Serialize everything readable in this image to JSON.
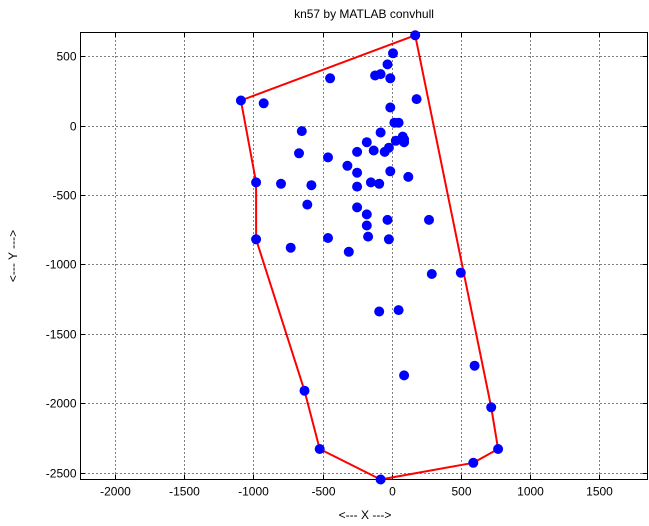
{
  "chart_data": {
    "type": "scatter",
    "title": "kn57 by MATLAB convhull",
    "xlabel": "<--- X --->",
    "ylabel": "<--- Y --->",
    "xlim": [
      -2250,
      1850
    ],
    "ylim": [
      -2550,
      670
    ],
    "x_ticks": [
      -2000,
      -1500,
      -1000,
      -500,
      0,
      500,
      1000,
      1500
    ],
    "y_ticks": [
      -2500,
      -2000,
      -1500,
      -1000,
      -500,
      0,
      500
    ],
    "x_tick_labels": [
      "-2000",
      "-1500",
      "-1000",
      "-500",
      "0",
      "500",
      "1000",
      "1500"
    ],
    "y_tick_labels": [
      "-2500",
      "-2000",
      "-1500",
      "-1000",
      "-500",
      "0",
      "500"
    ],
    "grid": true,
    "colors": {
      "points": "#0000ff",
      "hull": "#ff0000",
      "axes": "#000000",
      "grid": "#000000"
    },
    "series": [
      {
        "type": "scatter",
        "points": [
          [
            -1090,
            180
          ],
          [
            -925,
            160
          ],
          [
            -445,
            340
          ],
          [
            -120,
            360
          ],
          [
            -80,
            370
          ],
          [
            -30,
            440
          ],
          [
            10,
            520
          ],
          [
            170,
            650
          ],
          [
            -10,
            340
          ],
          [
            -10,
            130
          ],
          [
            180,
            190
          ],
          [
            20,
            20
          ],
          [
            50,
            20
          ],
          [
            -650,
            -40
          ],
          [
            -670,
            -200
          ],
          [
            -460,
            -230
          ],
          [
            -80,
            -50
          ],
          [
            -180,
            -120
          ],
          [
            -130,
            -180
          ],
          [
            -250,
            -190
          ],
          [
            -50,
            -190
          ],
          [
            30,
            -110
          ],
          [
            90,
            -100
          ],
          [
            80,
            -80
          ],
          [
            90,
            -120
          ],
          [
            -20,
            -160
          ],
          [
            -320,
            -290
          ],
          [
            -250,
            -340
          ],
          [
            -90,
            -420
          ],
          [
            -150,
            -410
          ],
          [
            -250,
            -440
          ],
          [
            -10,
            -330
          ],
          [
            120,
            -370
          ],
          [
            -980,
            -410
          ],
          [
            -800,
            -420
          ],
          [
            -580,
            -430
          ],
          [
            -610,
            -570
          ],
          [
            -250,
            -590
          ],
          [
            -180,
            -640
          ],
          [
            -180,
            -720
          ],
          [
            -170,
            -800
          ],
          [
            -30,
            -680
          ],
          [
            -460,
            -810
          ],
          [
            -20,
            -820
          ],
          [
            -310,
            -910
          ],
          [
            -980,
            -820
          ],
          [
            -730,
            -880
          ],
          [
            270,
            -680
          ],
          [
            290,
            -1070
          ],
          [
            500,
            -1060
          ],
          [
            -90,
            -1340
          ],
          [
            50,
            -1330
          ],
          [
            90,
            -1800
          ],
          [
            600,
            -1730
          ],
          [
            -630,
            -1910
          ],
          [
            720,
            -2030
          ],
          [
            -520,
            -2330
          ],
          [
            770,
            -2330
          ],
          [
            590,
            -2430
          ],
          [
            -80,
            -2550
          ]
        ]
      },
      {
        "type": "line",
        "name": "hull",
        "points": [
          [
            -1090,
            180
          ],
          [
            170,
            650
          ],
          [
            720,
            -2030
          ],
          [
            770,
            -2330
          ],
          [
            590,
            -2430
          ],
          [
            -80,
            -2550
          ],
          [
            -520,
            -2330
          ],
          [
            -630,
            -1910
          ],
          [
            -980,
            -820
          ],
          [
            -980,
            -410
          ],
          [
            -1090,
            180
          ]
        ]
      }
    ]
  }
}
